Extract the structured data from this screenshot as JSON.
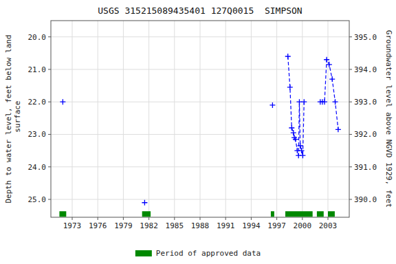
{
  "chart_data": {
    "type": "line",
    "title": "USGS 315215089435401 127Q0015  SIMPSON",
    "y_label": "Depth to water level, feet below land\n surface",
    "y2_label": "Groundwater level above NGVD 1929, feet",
    "xlim": [
      1970.5,
      2005.5
    ],
    "xticks": [
      1973,
      1976,
      1979,
      1982,
      1985,
      1988,
      1991,
      1994,
      1997,
      2000,
      2003
    ],
    "ylim": [
      25.55,
      19.5
    ],
    "yticks": [
      {
        "value": 20.0,
        "label": "20.0"
      },
      {
        "value": 21.0,
        "label": "21.0"
      },
      {
        "value": 22.0,
        "label": "22.0"
      },
      {
        "value": 23.0,
        "label": "23.0"
      },
      {
        "value": 24.0,
        "label": "24.0"
      },
      {
        "value": 25.0,
        "label": "25.0"
      }
    ],
    "y2lim": [
      389.45,
      395.5
    ],
    "y2ticks": [
      {
        "value": 390.0,
        "label": "390.0"
      },
      {
        "value": 391.0,
        "label": "391.0"
      },
      {
        "value": 392.0,
        "label": "392.0"
      },
      {
        "value": 393.0,
        "label": "393.0"
      },
      {
        "value": 394.0,
        "label": "394.0"
      },
      {
        "value": 395.0,
        "label": "395.0"
      }
    ],
    "grid": true,
    "legend": "bottom",
    "series": [
      {
        "x": [
          1971.9
        ],
        "values": [
          22.0
        ],
        "color": "#0000ff",
        "marker": "plus",
        "line_style": "none"
      },
      {
        "x": [
          1981.5
        ],
        "values": [
          25.1
        ],
        "color": "#0000ff",
        "marker": "plus",
        "line_style": "none"
      },
      {
        "x": [
          1996.5
        ],
        "values": [
          22.1
        ],
        "color": "#0000ff",
        "marker": "plus",
        "line_style": "none"
      },
      {
        "x": [
          1998.3,
          1998.55,
          1998.75,
          1998.95,
          1999.05,
          1999.2,
          1999.4,
          1999.55,
          1999.65,
          1999.75,
          1999.9,
          2000.05,
          2000.2
        ],
        "values": [
          20.6,
          21.55,
          22.8,
          22.95,
          23.1,
          23.15,
          23.5,
          23.65,
          22.0,
          23.35,
          23.5,
          23.65,
          22.0
        ],
        "color": "#0000ff",
        "marker": "plus",
        "line_style": "dashed"
      },
      {
        "x": [
          2002.1,
          2002.35,
          2002.6,
          2002.85,
          2003.15,
          2003.5,
          2003.85,
          2004.2
        ],
        "values": [
          22.0,
          22.0,
          22.0,
          20.7,
          20.85,
          21.3,
          22.0,
          22.85
        ],
        "color": "#0000ff",
        "marker": "plus",
        "line_style": "dashed"
      },
      {
        "name": "Period of approved data",
        "type": "span",
        "color": "#008800",
        "starts": [
          1971.5,
          1981.2,
          1996.3,
          1998.0,
          2001.7,
          2003.0
        ],
        "ends": [
          1972.3,
          1982.2,
          1996.7,
          2001.2,
          2002.5,
          2003.8
        ],
        "y": 25.45
      }
    ]
  }
}
